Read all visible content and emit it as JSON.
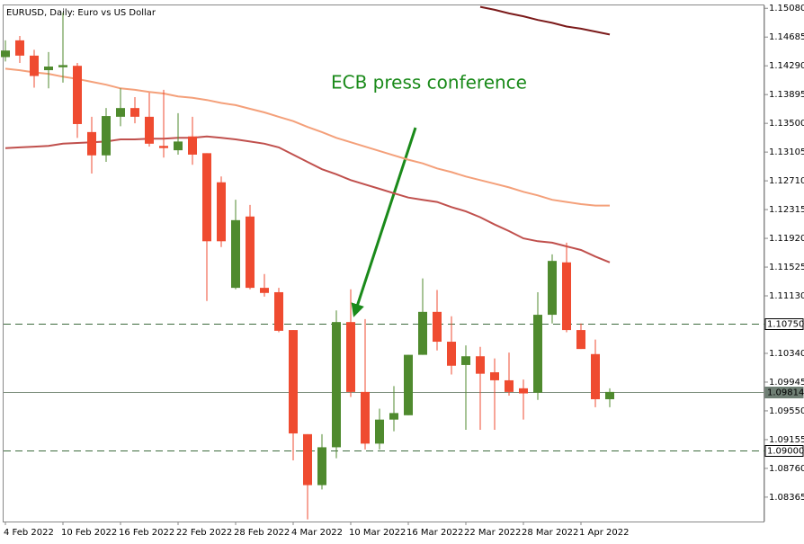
{
  "chart_data": {
    "type": "candlestick",
    "title": "EURUSD, Daily:  Euro vs US Dollar",
    "annotation": "ECB press conference",
    "categories": [
      "4 Feb 2022",
      null,
      null,
      null,
      "10 Feb 2022",
      null,
      null,
      null,
      "16 Feb 2022",
      null,
      null,
      null,
      "22 Feb 2022",
      null,
      null,
      null,
      "28 Feb 2022",
      null,
      null,
      null,
      "4 Mar 2022",
      null,
      null,
      null,
      "10 Mar 2022",
      null,
      null,
      null,
      "16 Mar 2022",
      null,
      null,
      null,
      "22 Mar 2022",
      null,
      null,
      null,
      "28 Mar 2022",
      null,
      null,
      null,
      "1 Apr 2022",
      null,
      null
    ],
    "open": [
      1.1441,
      1.1464,
      1.1443,
      1.1423,
      1.1427,
      1.1429,
      1.1338,
      1.1306,
      1.1359,
      1.1371,
      1.1359,
      1.1319,
      1.1313,
      1.1332,
      1.1309,
      1.1269,
      1.1124,
      1.1222,
      1.1124,
      1.1118,
      1.1066,
      1.0923,
      1.0853,
      1.0905,
      1.1077,
      1.0981,
      1.091,
      1.0943,
      1.0949,
      1.1032,
      1.1091,
      1.105,
      1.1018,
      1.103,
      1.1008,
      1.0997,
      1.0986,
      1.098,
      1.1087,
      1.1159,
      1.1066,
      1.1033,
      1.0971
    ],
    "high": [
      1.1464,
      1.147,
      1.1451,
      1.1448,
      1.1502,
      1.1433,
      1.1359,
      1.1371,
      1.1398,
      1.1386,
      1.1392,
      1.1396,
      1.1364,
      1.1359,
      1.1309,
      1.1277,
      1.1245,
      1.1238,
      1.1143,
      1.1124,
      1.1066,
      1.0923,
      1.0923,
      1.1093,
      1.1122,
      1.1081,
      1.0958,
      1.0989,
      1.1032,
      1.1137,
      1.1121,
      1.1085,
      1.1045,
      1.1043,
      1.1027,
      1.1035,
      1.0998,
      1.1118,
      1.117,
      1.1186,
      1.1075,
      1.1053,
      1.0986
    ],
    "low": [
      1.1435,
      1.1433,
      1.1399,
      1.1398,
      1.1406,
      1.133,
      1.1281,
      1.1297,
      1.1346,
      1.135,
      1.1318,
      1.1303,
      1.1307,
      1.1293,
      1.1106,
      1.118,
      1.1122,
      1.1122,
      1.1112,
      1.1063,
      1.0887,
      1.0806,
      1.0847,
      1.089,
      1.0974,
      1.0902,
      1.0902,
      1.0927,
      1.0949,
      1.1032,
      1.1038,
      1.1005,
      1.0929,
      1.0929,
      1.0929,
      1.0976,
      1.0943,
      1.097,
      1.1075,
      1.1063,
      1.104,
      1.096,
      1.096
    ],
    "close": [
      1.145,
      1.1443,
      1.1415,
      1.1428,
      1.143,
      1.1349,
      1.1306,
      1.136,
      1.1371,
      1.1359,
      1.1322,
      1.1316,
      1.1325,
      1.1307,
      1.1188,
      1.1188,
      1.1217,
      1.1124,
      1.1117,
      1.1065,
      1.0924,
      1.0853,
      1.0905,
      1.1077,
      1.0981,
      1.091,
      1.0943,
      1.0952,
      1.1032,
      1.1091,
      1.105,
      1.1017,
      1.103,
      1.1006,
      1.0997,
      1.0981,
      1.0979,
      1.1087,
      1.1161,
      1.1066,
      1.104,
      1.0971,
      1.0981
    ],
    "up_color": "#4f8a2e",
    "down_color": "#ef4b30",
    "lines": [
      {
        "color": "#f4a07a",
        "values": [
          1.1425,
          1.1423,
          1.142,
          1.1418,
          1.1414,
          1.1411,
          1.1407,
          1.1403,
          1.1398,
          1.1396,
          1.1393,
          1.1391,
          1.1387,
          1.1385,
          1.1382,
          1.1378,
          1.1375,
          1.137,
          1.1365,
          1.1359,
          1.1353,
          1.1345,
          1.1338,
          1.133,
          1.1324,
          1.1318,
          1.1312,
          1.1306,
          1.13,
          1.1295,
          1.1288,
          1.1283,
          1.1277,
          1.1272,
          1.1267,
          1.1262,
          1.1256,
          1.1251,
          1.1245,
          1.1242,
          1.1239,
          1.1237,
          1.1237
        ]
      },
      {
        "color": "#c0504d",
        "values": [
          1.1316,
          1.1317,
          1.1318,
          1.1319,
          1.1322,
          1.1323,
          1.1324,
          1.1325,
          1.1328,
          1.1328,
          1.1329,
          1.1329,
          1.133,
          1.133,
          1.1332,
          1.133,
          1.1328,
          1.1325,
          1.1322,
          1.1317,
          1.1307,
          1.1297,
          1.1287,
          1.128,
          1.1272,
          1.1266,
          1.126,
          1.1254,
          1.1248,
          1.1245,
          1.1242,
          1.1235,
          1.1229,
          1.1221,
          1.1211,
          1.1202,
          1.1192,
          1.1188,
          1.1186,
          1.1181,
          1.1176,
          1.1167,
          1.1159
        ]
      },
      {
        "color": "#7b1a1a",
        "values": [
          null,
          null,
          null,
          null,
          null,
          null,
          null,
          null,
          null,
          null,
          null,
          null,
          null,
          null,
          null,
          null,
          null,
          null,
          null,
          null,
          null,
          null,
          null,
          null,
          null,
          null,
          null,
          null,
          null,
          null,
          null,
          null,
          null,
          1.151,
          1.1506,
          1.1501,
          1.1497,
          1.1492,
          1.1488,
          1.1483,
          1.148,
          1.1476,
          1.1472
        ]
      }
    ],
    "levels": [
      {
        "value": 1.1075,
        "label": "1.10750",
        "style": "dashed"
      },
      {
        "value": 1.09814,
        "label": "1.09814",
        "style": "current"
      },
      {
        "value": 1.09,
        "label": "1.09000",
        "style": "dashed"
      }
    ],
    "ylim": [
      1.0803,
      1.1512
    ],
    "yticks": [
      {
        "value": 1.1508,
        "label": "1.15080"
      },
      {
        "value": 1.14685,
        "label": "1.14685"
      },
      {
        "value": 1.1429,
        "label": "1.14290"
      },
      {
        "value": 1.13895,
        "label": "1.13895"
      },
      {
        "value": 1.135,
        "label": "1.13500"
      },
      {
        "value": 1.13105,
        "label": "1.13105"
      },
      {
        "value": 1.1271,
        "label": "1.12710"
      },
      {
        "value": 1.12315,
        "label": "1.12315"
      },
      {
        "value": 1.1192,
        "label": "1.11920"
      },
      {
        "value": 1.11525,
        "label": "1.11525"
      },
      {
        "value": 1.1113,
        "label": "1.11130"
      },
      {
        "value": 1.1034,
        "label": "1.10340"
      },
      {
        "value": 1.09945,
        "label": "1.09945"
      },
      {
        "value": 1.0955,
        "label": "1.09550"
      },
      {
        "value": 1.09155,
        "label": "1.09155"
      },
      {
        "value": 1.0876,
        "label": "1.08760"
      },
      {
        "value": 1.08365,
        "label": "1.08365"
      }
    ]
  }
}
